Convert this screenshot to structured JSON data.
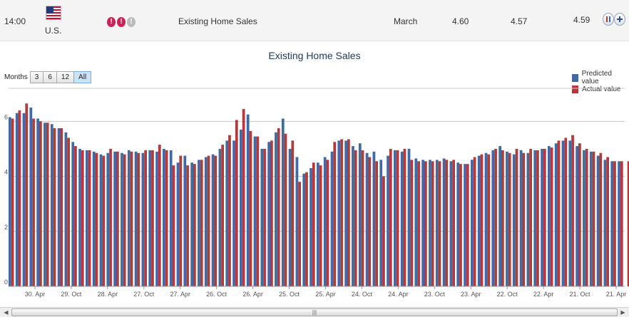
{
  "event": {
    "time": "14:00",
    "country": "U.S.",
    "name": "Existing Home Sales",
    "period": "March",
    "value_1": "4.60",
    "value_2": "4.57",
    "value_3": "4.59",
    "importance": "3 of 3",
    "importance_glyph": "!",
    "flag_icon": "us-flag-icon"
  },
  "range_selector": {
    "label": "Months",
    "buttons": [
      "3",
      "6",
      "12",
      "All"
    ],
    "selected": "All"
  },
  "colors": {
    "predicted": "#3f6aa3",
    "actual": "#b23a3c",
    "positive_value": "#3d8c2a",
    "importance_on": "#cc2357"
  },
  "scrollbar": {
    "thumb_grip": "|||"
  },
  "chart_data": {
    "type": "bar",
    "title": "Existing Home Sales",
    "xlabel": "",
    "ylabel": "",
    "ylim": [
      0,
      7.2
    ],
    "yticks": [
      0,
      2,
      4,
      6
    ],
    "grid": true,
    "legend_position": "top-right",
    "x_tick_labels": [
      "30. Apr",
      "29. Oct",
      "28. Apr",
      "27. Oct",
      "27. Apr",
      "26. Oct",
      "26. Apr",
      "25. Oct",
      "25. Apr",
      "24. Oct",
      "24. Apr",
      "23. Oct",
      "23. Apr",
      "22. Oct",
      "22. Apr",
      "21. Oct",
      "21. Apr"
    ],
    "series": [
      {
        "name": "Predicted value",
        "values": [
          6.15,
          6.3,
          6.3,
          6.5,
          6.1,
          5.95,
          5.9,
          5.75,
          5.6,
          5.25,
          5.0,
          4.95,
          4.9,
          4.8,
          4.85,
          4.9,
          4.85,
          4.95,
          4.9,
          4.85,
          4.95,
          4.9,
          5.0,
          4.95,
          4.5,
          4.75,
          4.5,
          4.6,
          4.7,
          4.8,
          5.0,
          5.3,
          5.3,
          5.7,
          6.25,
          5.45,
          5.0,
          5.25,
          5.6,
          6.1,
          5.0,
          4.7,
          4.1,
          4.3,
          4.5,
          4.7,
          4.9,
          5.3,
          5.3,
          5.1,
          5.2,
          4.85,
          4.9,
          4.6,
          4.75,
          4.95,
          4.9,
          5.0,
          4.65,
          4.6,
          4.6,
          4.6,
          4.65,
          4.55,
          4.5,
          4.45,
          4.6,
          4.75,
          4.85,
          4.95,
          5.1,
          4.9,
          4.8,
          4.95,
          4.85,
          4.95,
          5.0,
          5.1,
          5.2,
          5.3,
          5.3,
          5.1,
          4.95,
          4.9,
          4.75,
          4.6,
          4.55,
          4.55
        ]
      },
      {
        "name": "Actual value",
        "values": [
          6.1,
          6.4,
          6.65,
          6.1,
          6.0,
          5.95,
          5.75,
          5.75,
          5.4,
          5.1,
          4.95,
          4.95,
          4.85,
          4.75,
          5.0,
          4.9,
          4.8,
          4.9,
          4.85,
          4.95,
          4.95,
          5.15,
          4.95,
          4.4,
          4.75,
          4.4,
          4.45,
          4.6,
          4.75,
          4.75,
          5.15,
          5.5,
          6.05,
          6.45,
          5.65,
          5.45,
          5.0,
          5.3,
          5.75,
          5.55,
          5.3,
          3.8,
          4.15,
          4.5,
          4.4,
          4.6,
          5.25,
          5.35,
          5.35,
          4.95,
          4.95,
          4.7,
          4.55,
          4.0,
          5.0,
          4.95,
          5.0,
          4.6,
          4.55,
          4.55,
          4.55,
          4.55,
          4.6,
          4.6,
          4.45,
          4.45,
          4.7,
          4.8,
          4.8,
          5.0,
          4.95,
          4.85,
          5.0,
          4.85,
          5.0,
          4.95,
          5.0,
          5.05,
          5.3,
          5.4,
          5.5,
          5.2,
          5.0,
          4.9,
          4.85,
          4.7,
          4.55,
          4.55,
          4.55
        ]
      }
    ]
  }
}
